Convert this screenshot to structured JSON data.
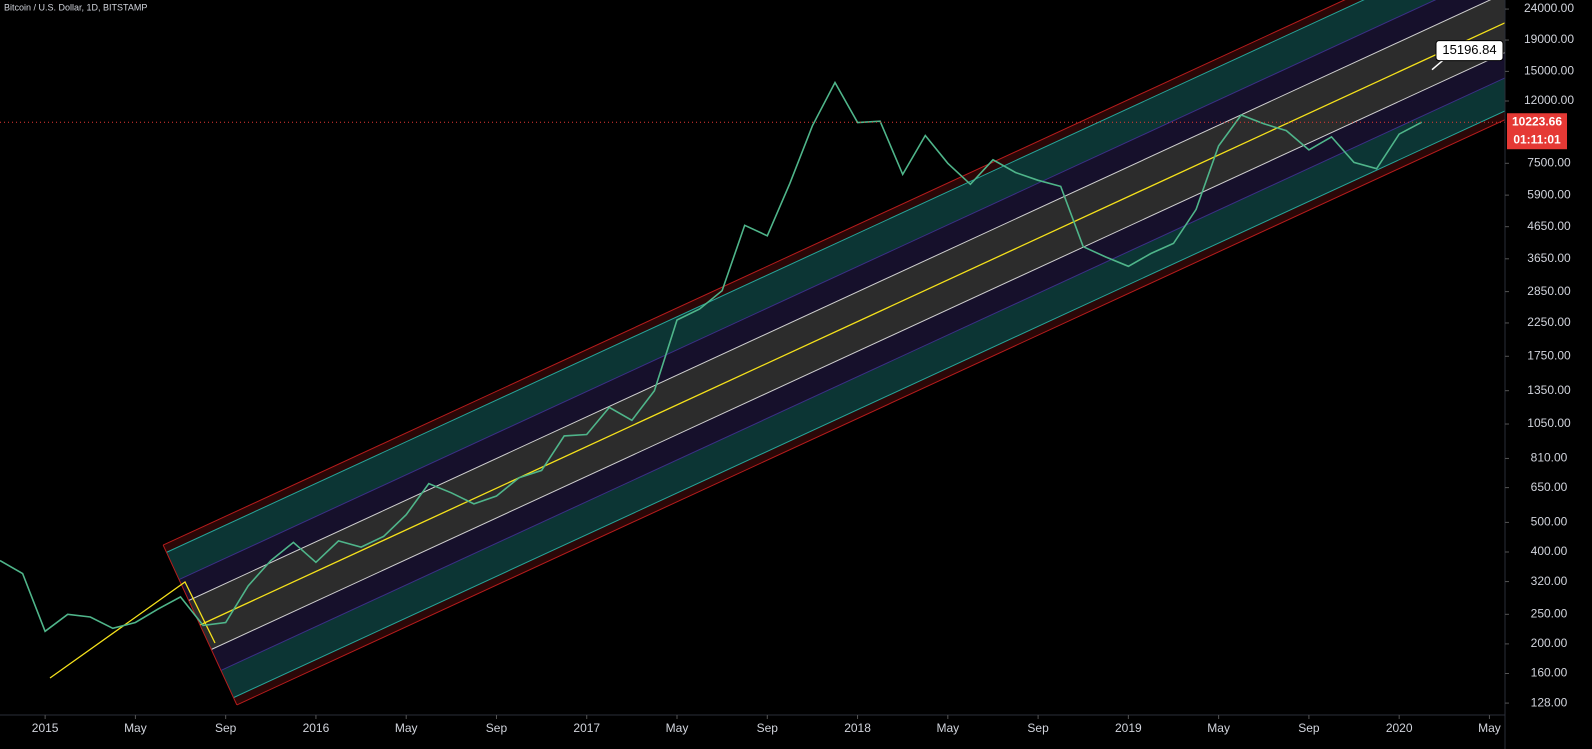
{
  "chart_data": {
    "type": "line",
    "title": "Bitcoin / U.S. Dollar, 1D, BITSTAMP",
    "x": [
      "2014-11",
      "2014-12",
      "2015-01",
      "2015-02",
      "2015-03",
      "2015-04",
      "2015-05",
      "2015-06",
      "2015-07",
      "2015-08",
      "2015-09",
      "2015-10",
      "2015-11",
      "2015-12",
      "2016-01",
      "2016-02",
      "2016-03",
      "2016-04",
      "2016-05",
      "2016-06",
      "2016-07",
      "2016-08",
      "2016-09",
      "2016-10",
      "2016-11",
      "2016-12",
      "2017-01",
      "2017-02",
      "2017-03",
      "2017-04",
      "2017-05",
      "2017-06",
      "2017-07",
      "2017-08",
      "2017-09",
      "2017-10",
      "2017-11",
      "2017-12",
      "2018-01",
      "2018-02",
      "2018-03",
      "2018-04",
      "2018-05",
      "2018-06",
      "2018-07",
      "2018-08",
      "2018-09",
      "2018-10",
      "2018-11",
      "2018-12",
      "2019-01",
      "2019-02",
      "2019-03",
      "2019-04",
      "2019-05",
      "2019-06",
      "2019-07",
      "2019-08",
      "2019-09",
      "2019-10",
      "2019-11",
      "2019-12",
      "2020-01",
      "2020-02"
    ],
    "values": [
      375,
      340,
      220,
      250,
      245,
      225,
      235,
      260,
      285,
      230,
      235,
      310,
      375,
      430,
      370,
      435,
      415,
      450,
      530,
      670,
      625,
      575,
      610,
      700,
      740,
      960,
      970,
      1190,
      1080,
      1350,
      2300,
      2500,
      2870,
      4700,
      4340,
      6450,
      9950,
      13800,
      10200,
      10300,
      6900,
      9250,
      7500,
      6400,
      7700,
      7000,
      6600,
      6300,
      4000,
      3700,
      3450,
      3800,
      4100,
      5300,
      8550,
      10800,
      10100,
      9600,
      8300,
      9150,
      7550,
      7200,
      9350,
      10223.66
    ],
    "color": "#4fb58a",
    "log_scale": true,
    "grid": false,
    "xlim": [
      "2014-11",
      "2020-06"
    ],
    "xticks": [
      {
        "value": "2015-01",
        "label": "2015"
      },
      {
        "value": "2015-05",
        "label": "May"
      },
      {
        "value": "2015-09",
        "label": "Sep"
      },
      {
        "value": "2016-01",
        "label": "2016"
      },
      {
        "value": "2016-05",
        "label": "May"
      },
      {
        "value": "2016-09",
        "label": "Sep"
      },
      {
        "value": "2017-01",
        "label": "2017"
      },
      {
        "value": "2017-05",
        "label": "May"
      },
      {
        "value": "2017-09",
        "label": "Sep"
      },
      {
        "value": "2018-01",
        "label": "2018"
      },
      {
        "value": "2018-05",
        "label": "May"
      },
      {
        "value": "2018-09",
        "label": "Sep"
      },
      {
        "value": "2019-01",
        "label": "2019"
      },
      {
        "value": "2019-05",
        "label": "May"
      },
      {
        "value": "2019-09",
        "label": "Sep"
      },
      {
        "value": "2020-01",
        "label": "2020"
      },
      {
        "value": "2020-05",
        "label": "May"
      }
    ],
    "ylim": [
      117,
      25700
    ],
    "yticks": [
      {
        "value": 128,
        "label": "128.00"
      },
      {
        "value": 160,
        "label": "160.00"
      },
      {
        "value": 200,
        "label": "200.00"
      },
      {
        "value": 250,
        "label": "250.00"
      },
      {
        "value": 320,
        "label": "320.00"
      },
      {
        "value": 400,
        "label": "400.00"
      },
      {
        "value": 500,
        "label": "500.00"
      },
      {
        "value": 650,
        "label": "650.00"
      },
      {
        "value": 810,
        "label": "810.00"
      },
      {
        "value": 1050,
        "label": "1050.00"
      },
      {
        "value": 1350,
        "label": "1350.00"
      },
      {
        "value": 1750,
        "label": "1750.00"
      },
      {
        "value": 2250,
        "label": "2250.00"
      },
      {
        "value": 2850,
        "label": "2850.00"
      },
      {
        "value": 3650,
        "label": "3650.00"
      },
      {
        "value": 4650,
        "label": "4650.00"
      },
      {
        "value": 5900,
        "label": "5900.00"
      },
      {
        "value": 7500,
        "label": "7500.00"
      },
      {
        "value": 12000,
        "label": "12000.00"
      },
      {
        "value": 15000,
        "label": "15000.00"
      },
      {
        "value": 19000,
        "label": "19000.00"
      },
      {
        "value": 24000,
        "label": "24000.00"
      }
    ],
    "last_price": 10223.66,
    "countdown": "01:11:01",
    "annotation": 15196.84
  }
}
